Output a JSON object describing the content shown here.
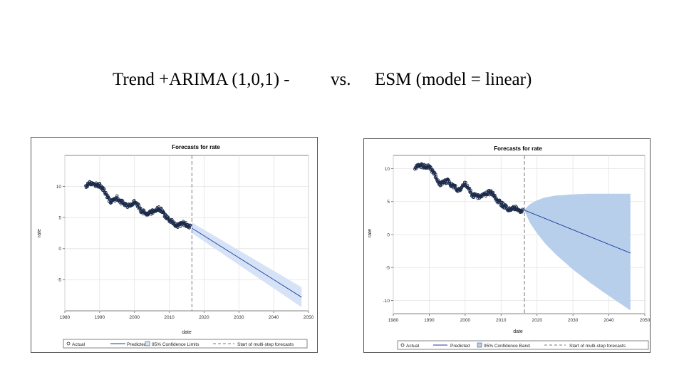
{
  "slide": {
    "title_left": "Trend +ARIMA (1,0,1) -",
    "title_vs": "vs.",
    "title_right": "ESM (model = linear)"
  },
  "colors": {
    "actual": "#1b2a4a",
    "predicted": "#1a3fa0",
    "band_left": "#d6e2f5",
    "band_right": "#b8cfeb",
    "grid": "#e4e4e4",
    "refline": "#777777"
  },
  "chart_data": [
    {
      "type": "line",
      "title": "Forecasts for rate",
      "xlabel": "date",
      "ylabel": "rate",
      "xlim": [
        1980,
        2050
      ],
      "ylim": [
        -10,
        15
      ],
      "xticks": [
        1980,
        1990,
        2000,
        2010,
        2020,
        2030,
        2040,
        2050
      ],
      "yticks": [
        -5,
        0,
        5,
        10
      ],
      "grid": true,
      "forecast_start": 2016.5,
      "legend": [
        "Actual",
        "Predicted",
        "95% Confidence Limits",
        "Start of multi-step forecasts"
      ],
      "legend_position": "bottom",
      "actual_anchor": {
        "x": [
          1986.0,
          1987.0,
          1988.0,
          1989.0,
          1990.0,
          1991.0,
          1992.0,
          1993.0,
          1994.0,
          1995.0,
          1996.0,
          1997.0,
          1998.0,
          1999.0,
          2000.0,
          2001.0,
          2002.0,
          2003.0,
          2004.0,
          2005.0,
          2006.0,
          2007.0,
          2008.0,
          2009.0,
          2010.0,
          2011.0,
          2012.0,
          2013.0,
          2014.0,
          2015.0,
          2016.0
        ],
        "y": [
          10.0,
          10.6,
          10.4,
          10.3,
          10.2,
          9.6,
          8.6,
          7.6,
          7.8,
          8.2,
          7.6,
          7.3,
          6.8,
          7.0,
          7.7,
          7.0,
          6.0,
          5.8,
          5.7,
          5.9,
          6.3,
          6.4,
          6.1,
          5.1,
          4.7,
          4.3,
          3.7,
          3.9,
          4.1,
          3.8,
          3.5
        ]
      },
      "predicted": {
        "x": [
          2016.5,
          2048
        ],
        "y": [
          3.3,
          -7.8
        ]
      },
      "confidence_band": {
        "x": [
          2016.5,
          2048
        ],
        "lower": [
          2.5,
          -9.4
        ],
        "upper": [
          4.2,
          -6.2
        ]
      }
    },
    {
      "type": "line",
      "title": "Forecasts for rate",
      "xlabel": "date",
      "ylabel": "rate",
      "xlim": [
        1980,
        2050
      ],
      "ylim": [
        -12,
        12
      ],
      "xticks": [
        1980,
        1990,
        2000,
        2010,
        2020,
        2030,
        2040,
        2050
      ],
      "yticks": [
        -10,
        -5,
        0,
        5,
        10
      ],
      "grid": true,
      "forecast_start": 2016.5,
      "legend": [
        "Actual",
        "Predicted",
        "95% Confidence Band",
        "Start of multi-step forecasts"
      ],
      "legend_position": "bottom",
      "actual_anchor": {
        "x": [
          1986.0,
          1987.0,
          1988.0,
          1989.0,
          1990.0,
          1991.0,
          1992.0,
          1993.0,
          1994.0,
          1995.0,
          1996.0,
          1997.0,
          1998.0,
          1999.0,
          2000.0,
          2001.0,
          2002.0,
          2003.0,
          2004.0,
          2005.0,
          2006.0,
          2007.0,
          2008.0,
          2009.0,
          2010.0,
          2011.0,
          2012.0,
          2013.0,
          2014.0,
          2015.0,
          2016.0
        ],
        "y": [
          10.0,
          10.6,
          10.4,
          10.3,
          10.2,
          9.6,
          8.6,
          7.6,
          7.8,
          8.2,
          7.6,
          7.3,
          6.8,
          7.0,
          7.7,
          7.0,
          6.0,
          5.8,
          5.7,
          5.9,
          6.3,
          6.4,
          6.1,
          5.1,
          4.7,
          4.3,
          3.7,
          3.9,
          4.1,
          3.8,
          3.5
        ]
      },
      "predicted": {
        "x": [
          2016.5,
          2046
        ],
        "y": [
          3.7,
          -2.8
        ]
      },
      "confidence_band": {
        "x": [
          2016.5,
          2018,
          2020,
          2022,
          2025,
          2030,
          2035,
          2040,
          2046
        ],
        "lower": [
          3.6,
          1.8,
          0.2,
          -1.2,
          -2.9,
          -5.3,
          -7.4,
          -9.3,
          -11.5
        ],
        "upper": [
          3.8,
          4.6,
          5.2,
          5.6,
          5.9,
          6.1,
          6.2,
          6.2,
          6.2
        ]
      }
    }
  ]
}
